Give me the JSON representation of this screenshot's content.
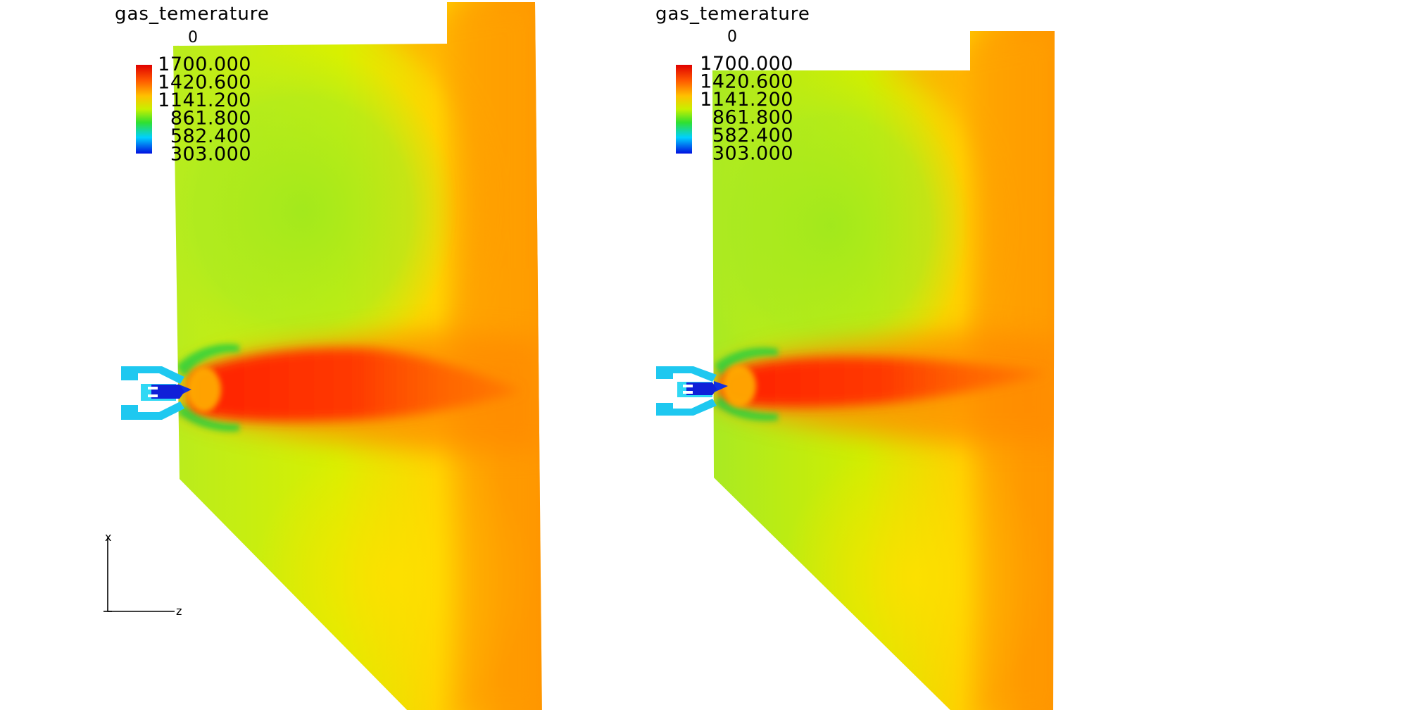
{
  "panels": [
    {
      "title": "gas_temerature",
      "time": "0",
      "colorbar": {
        "labels": [
          "1700.000",
          "1420.600",
          "1141.200",
          "861.800",
          "582.400",
          "303.000"
        ],
        "colors": [
          "#e80000",
          "#ff9a00",
          "#e6f200",
          "#2fe02f",
          "#00c8ff",
          "#0000e6"
        ]
      }
    },
    {
      "title": "gas_temerature",
      "time": "0",
      "colorbar": {
        "labels": [
          "1700.000",
          "1420.600",
          "1141.200",
          "861.800",
          "582.400",
          "303.000"
        ],
        "colors": [
          "#e80000",
          "#ff9a00",
          "#e6f200",
          "#2fe02f",
          "#00c8ff",
          "#0000e6"
        ]
      }
    }
  ],
  "axes": {
    "vertical_label": "x",
    "horizontal_label": "z"
  }
}
